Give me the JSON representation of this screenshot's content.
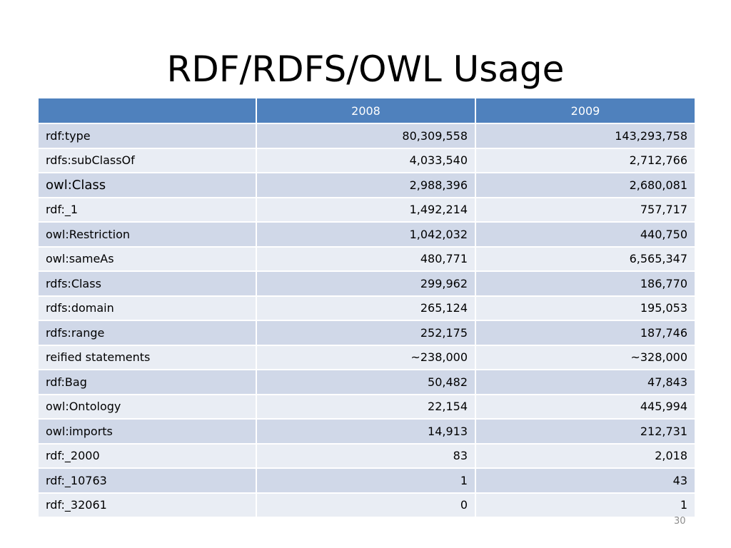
{
  "slide": {
    "title": "RDF/RDFS/OWL Usage",
    "page_number": "30"
  },
  "table": {
    "headers": [
      "",
      "2008",
      "2009"
    ],
    "rows": [
      {
        "label": "rdf:type",
        "y2008": "80,309,558",
        "y2009": "143,293,758"
      },
      {
        "label": "rdfs:subClassOf",
        "y2008": "4,033,540",
        "y2009": "2,712,766"
      },
      {
        "label": "owl:Class",
        "y2008": "2,988,396",
        "y2009": "2,680,081"
      },
      {
        "label": "rdf:_1",
        "y2008": "1,492,214",
        "y2009": "757,717"
      },
      {
        "label": "owl:Restriction",
        "y2008": "1,042,032",
        "y2009": "440,750"
      },
      {
        "label": "owl:sameAs",
        "y2008": "480,771",
        "y2009": "6,565,347"
      },
      {
        "label": "rdfs:Class",
        "y2008": "299,962",
        "y2009": "186,770"
      },
      {
        "label": "rdfs:domain",
        "y2008": "265,124",
        "y2009": "195,053"
      },
      {
        "label": "rdfs:range",
        "y2008": "252,175",
        "y2009": "187,746"
      },
      {
        "label": "reified statements",
        "y2008": "~238,000",
        "y2009": "~328,000"
      },
      {
        "label": "rdf:Bag",
        "y2008": "50,482",
        "y2009": "47,843"
      },
      {
        "label": "owl:Ontology",
        "y2008": "22,154",
        "y2009": "445,994"
      },
      {
        "label": "owl:imports",
        "y2008": "14,913",
        "y2009": "212,731"
      },
      {
        "label": "rdf:_2000",
        "y2008": "83",
        "y2009": "2,018"
      },
      {
        "label": "rdf:_10763",
        "y2008": "1",
        "y2009": "43"
      },
      {
        "label": "rdf:_32061",
        "y2008": "0",
        "y2009": "1"
      }
    ]
  },
  "colors": {
    "header_background": "#4f81bd",
    "header_text": "#ffffff",
    "row_band_dark": "#d0d8e8",
    "row_band_light": "#e9edf4",
    "page_number": "#8c8c8c"
  }
}
